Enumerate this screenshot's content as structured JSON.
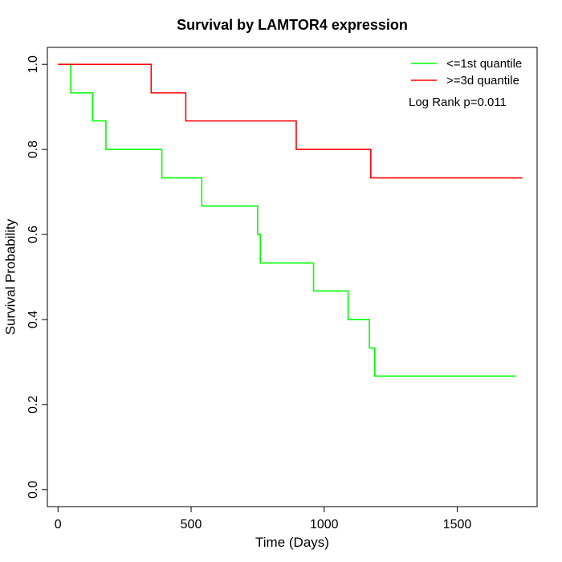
{
  "chart_data": {
    "type": "line",
    "title": "Survival by LAMTOR4 expression",
    "xlabel": "Time (Days)",
    "ylabel": "Survival Probability",
    "xlim": [
      -40,
      1800
    ],
    "ylim": [
      -0.04,
      1.04
    ],
    "xticks": [
      0,
      500,
      1000,
      1500
    ],
    "yticks": [
      0.0,
      0.2,
      0.4,
      0.6,
      0.8,
      1.0
    ],
    "xtick_labels": [
      "0",
      "500",
      "1000",
      "1500"
    ],
    "ytick_labels": [
      "0.0",
      "0.2",
      "0.4",
      "0.6",
      "0.8",
      "1.0"
    ],
    "grid": false,
    "legend_position": "top-right",
    "annotation": "Log Rank p=0.011",
    "series": [
      {
        "name": "<=1st quantile",
        "color": "#00ff00",
        "step": true,
        "x": [
          0,
          48,
          130,
          180,
          390,
          540,
          750,
          760,
          960,
          1090,
          1170,
          1190,
          1720
        ],
        "y": [
          1.0,
          0.933,
          0.867,
          0.8,
          0.733,
          0.667,
          0.6,
          0.533,
          0.467,
          0.4,
          0.333,
          0.267,
          0.267
        ]
      },
      {
        "name": ">=3d quantile",
        "color": "#ff0000",
        "step": true,
        "x": [
          0,
          350,
          480,
          895,
          1175,
          1745
        ],
        "y": [
          1.0,
          0.933,
          0.867,
          0.8,
          0.733,
          0.733
        ]
      }
    ]
  }
}
